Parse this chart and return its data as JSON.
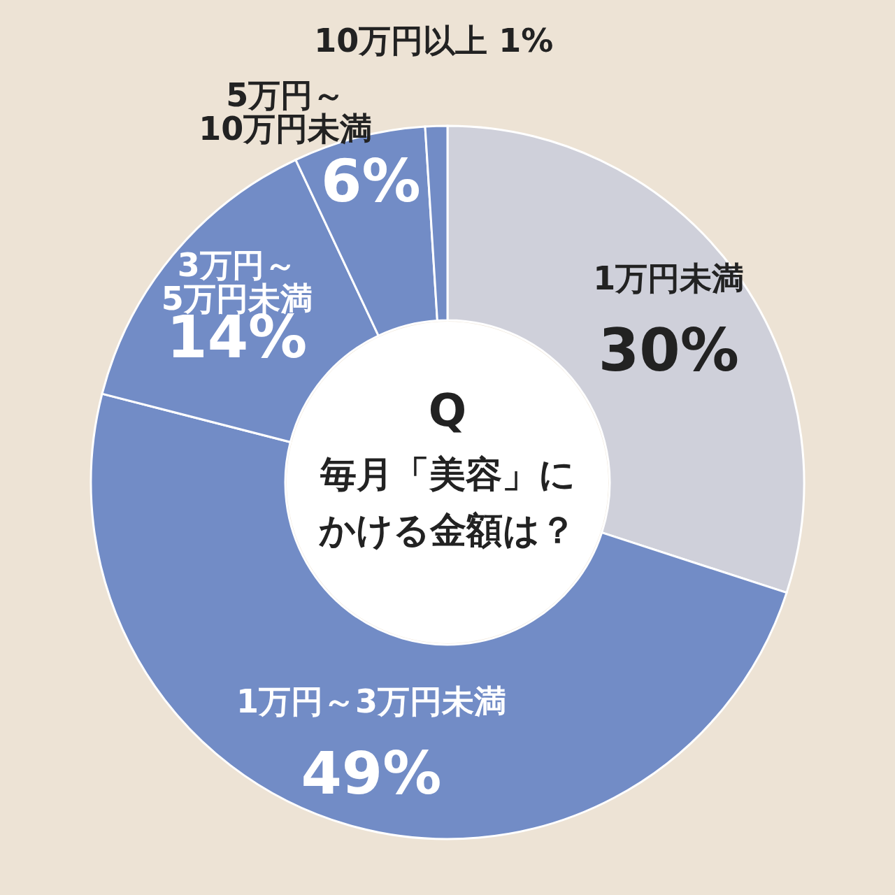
{
  "chart_data": {
    "type": "donut",
    "title": "Q",
    "subtitle": "毎月「美容」にかける金額は？",
    "categories": [
      "1万円未満",
      "1万円～3万円未満",
      "3万円～5万円未満",
      "5万円～10万円未満",
      "10万円以上"
    ],
    "values": [
      30,
      49,
      14,
      6,
      1
    ],
    "value_labels": [
      "30%",
      "49%",
      "14%",
      "6%",
      "1%"
    ],
    "colors": [
      "#cfd0da",
      "#728cc6",
      "#728cc6",
      "#728cc6",
      "#728cc6"
    ]
  }
}
